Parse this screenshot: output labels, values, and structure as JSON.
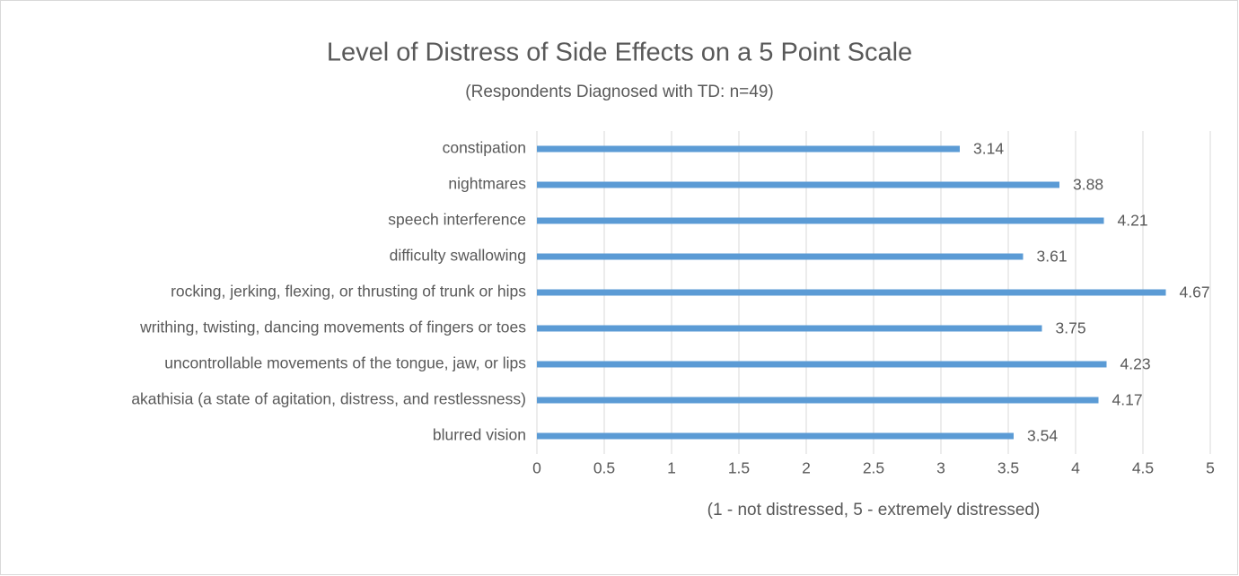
{
  "chart_data": {
    "type": "barh",
    "title": "Level of Distress of Side Effects on a 5 Point Scale",
    "subtitle": "(Respondents Diagnosed with TD: n=49)",
    "x_label": "(1 - not distressed, 5 - extremely distressed)",
    "categories": [
      "constipation",
      "nightmares",
      "speech interference",
      "difficulty swallowing",
      "rocking, jerking, flexing, or thrusting of trunk or hips",
      "writhing, twisting, dancing movements of fingers or toes",
      "uncontrollable movements of the tongue, jaw, or lips",
      "akathisia (a state of agitation, distress, and restlessness)",
      "blurred vision"
    ],
    "values": [
      3.14,
      3.88,
      4.21,
      3.61,
      4.67,
      3.75,
      4.23,
      4.17,
      3.54
    ],
    "color": "#5b9bd5",
    "xlim": [
      0,
      5
    ],
    "xticks": [
      0,
      0.5,
      1,
      1.5,
      2,
      2.5,
      3,
      3.5,
      4,
      4.5,
      5
    ],
    "grid": true
  }
}
